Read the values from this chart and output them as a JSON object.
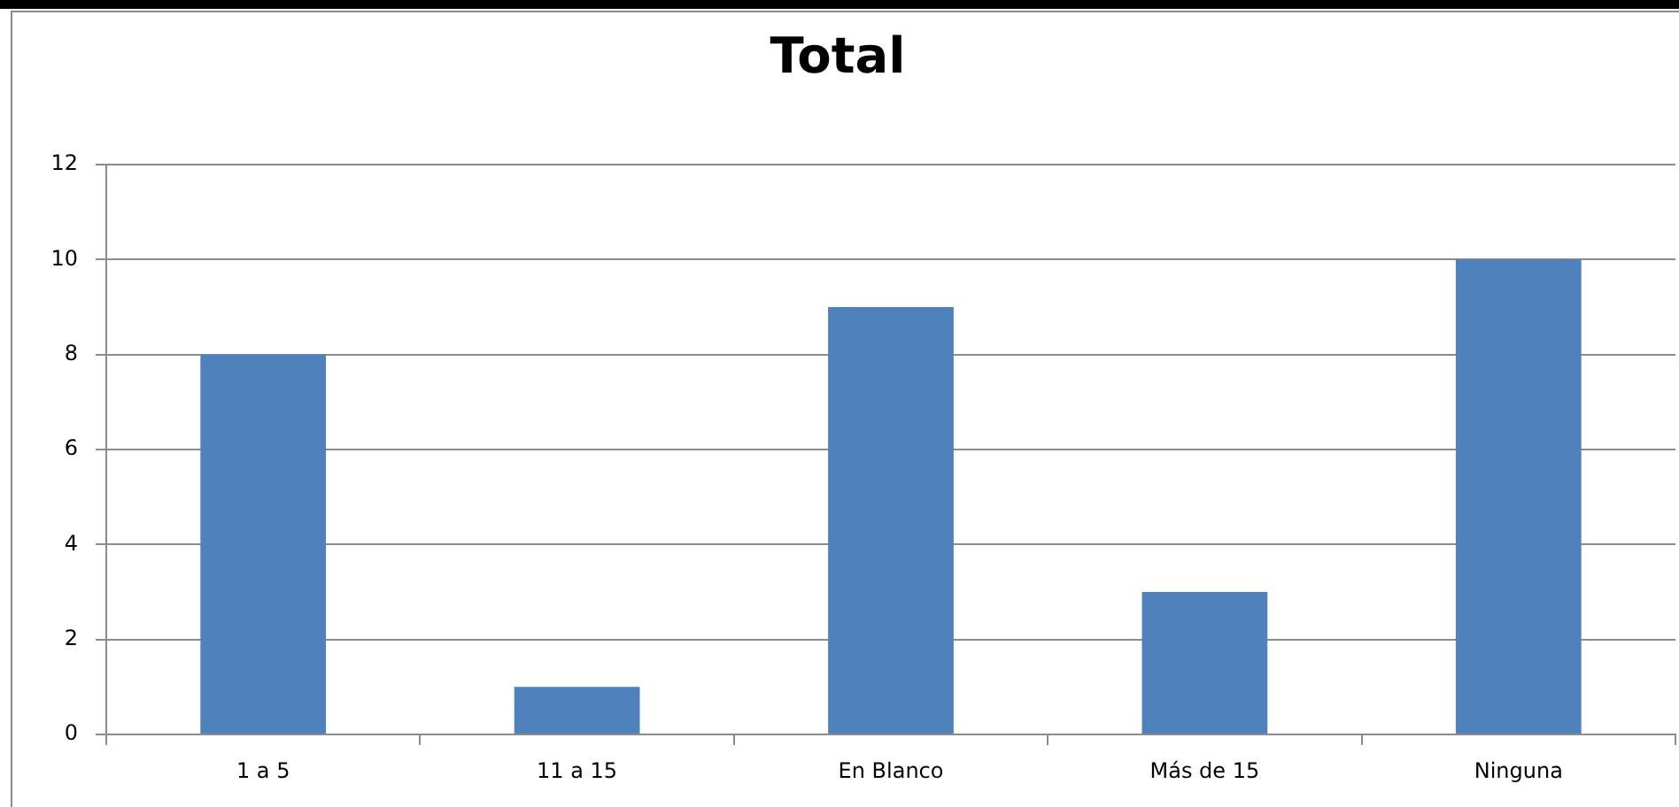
{
  "chart_data": {
    "type": "bar",
    "title": "Total",
    "categories": [
      "1 a 5",
      "11 a 15",
      "En Blanco",
      "Más de 15",
      "Ninguna"
    ],
    "values": [
      8,
      1,
      9,
      3,
      10
    ],
    "color": "#4f81bd",
    "ylim": [
      0,
      12
    ],
    "yticks": [
      0,
      2,
      4,
      6,
      8,
      10,
      12
    ],
    "grid": "y"
  }
}
